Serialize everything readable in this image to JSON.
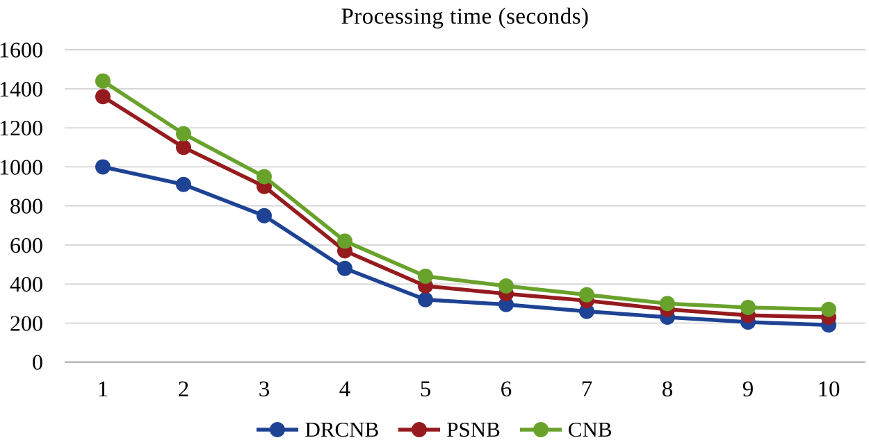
{
  "title": "Processing time (seconds)",
  "chart_data": {
    "type": "line",
    "title": "Processing time (seconds)",
    "xlabel": "",
    "ylabel": "",
    "x": [
      1,
      2,
      3,
      4,
      5,
      6,
      7,
      8,
      9,
      10
    ],
    "series": [
      {
        "name": "DRCNB",
        "color": "#1F4394",
        "values": [
          1000,
          910,
          750,
          480,
          320,
          295,
          260,
          230,
          205,
          190
        ]
      },
      {
        "name": "PSNB",
        "color": "#951B1E",
        "values": [
          1360,
          1100,
          900,
          570,
          390,
          350,
          315,
          270,
          240,
          230
        ]
      },
      {
        "name": "CNB",
        "color": "#69A22B",
        "values": [
          1440,
          1170,
          950,
          620,
          440,
          390,
          345,
          300,
          280,
          270
        ]
      }
    ],
    "ylim": [
      0,
      1600
    ],
    "yticks": [
      0,
      200,
      400,
      600,
      800,
      1000,
      1200,
      1400,
      1600
    ],
    "grid": "horizontal-only",
    "legend_position": "bottom",
    "colors": {
      "gridline": "#C8C8C8",
      "axis": "#A9A9A9",
      "text": "#000000"
    }
  }
}
